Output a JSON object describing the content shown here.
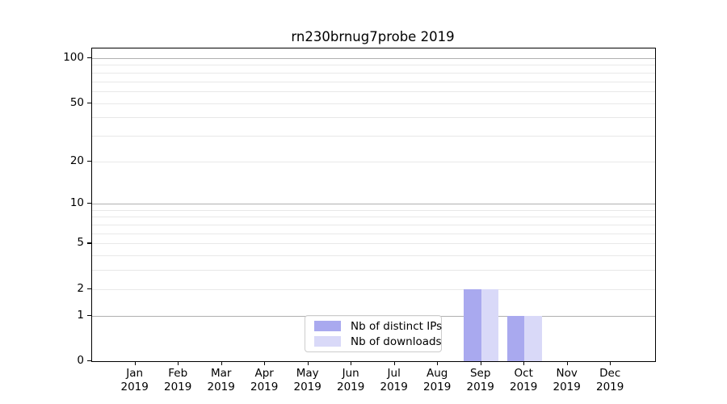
{
  "chart_data": {
    "type": "bar",
    "title": "rn230brnug7probe 2019",
    "categories": [
      "Jan",
      "Feb",
      "Mar",
      "Apr",
      "May",
      "Jun",
      "Jul",
      "Aug",
      "Sep",
      "Oct",
      "Nov",
      "Dec"
    ],
    "category_year": "2019",
    "series": [
      {
        "name": "Nb of distinct IPs",
        "color": "#a9a9ef",
        "values": [
          0,
          0,
          0,
          0,
          0,
          0,
          0,
          0,
          2,
          1,
          0,
          0
        ]
      },
      {
        "name": "Nb of downloads",
        "color": "#d9d9f8",
        "values": [
          0,
          0,
          0,
          0,
          0,
          0,
          0,
          0,
          2,
          1,
          0,
          0
        ]
      }
    ],
    "xlabel": "",
    "ylabel": "",
    "yscale": "log1p",
    "ylim": [
      0,
      100
    ],
    "y_tick_values": [
      0,
      1,
      2,
      5,
      10,
      20,
      50,
      100
    ],
    "y_major_gridlines": [
      1,
      10,
      100
    ],
    "y_minor_gridlines": [
      2,
      3,
      4,
      5,
      6,
      7,
      8,
      9,
      20,
      30,
      40,
      50,
      60,
      70,
      80,
      90
    ],
    "grid": true,
    "legend_position": "lower center",
    "colors": {
      "major_grid": "#b0b0b0",
      "minor_grid": "#e8e8e8",
      "spine": "#000000",
      "legend_border": "#cccccc"
    }
  }
}
